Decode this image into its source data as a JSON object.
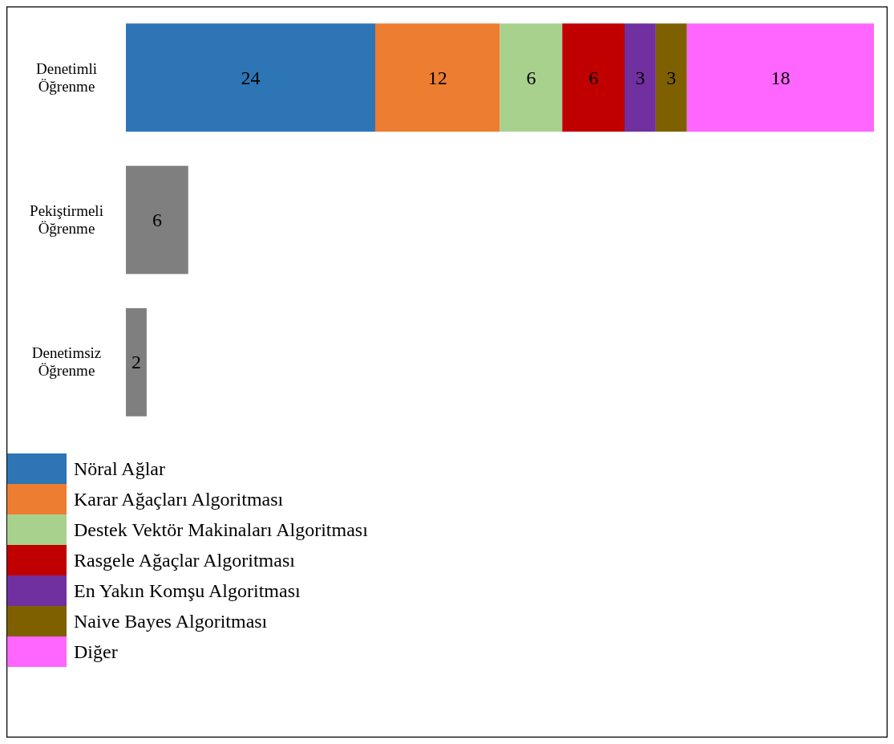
{
  "chart_data": {
    "type": "bar",
    "orientation": "horizontal",
    "stacked": true,
    "categories": [
      "Denetimli Öğrenme",
      "Pekiştirmeli Öğrenme",
      "Denetimsiz Öğrenme"
    ],
    "series": [
      {
        "name": "Nöral Ağlar",
        "color": "#2e75b6",
        "values": [
          24,
          null,
          null
        ]
      },
      {
        "name": "Karar Ağaçları Algoritması",
        "color": "#ed7d31",
        "values": [
          12,
          null,
          null
        ]
      },
      {
        "name": "Destek Vektör Makinaları Algoritması",
        "color": "#a9d18e",
        "values": [
          6,
          null,
          null
        ]
      },
      {
        "name": "Rasgele Ağaçlar Algoritması",
        "color": "#c00000",
        "values": [
          6,
          null,
          null
        ]
      },
      {
        "name": "En Yakın Komşu Algoritması",
        "color": "#7030a0",
        "values": [
          3,
          null,
          null
        ]
      },
      {
        "name": "Naive Bayes Algoritması",
        "color": "#7f6000",
        "values": [
          3,
          null,
          null
        ]
      },
      {
        "name": "Diğer",
        "color": "#ff66ff",
        "values": [
          18,
          null,
          null
        ]
      },
      {
        "color": "#7f7f7f",
        "values": [
          null,
          6,
          2
        ]
      }
    ],
    "data_labels": true,
    "legend": "bottom left",
    "tick_labels": "y"
  }
}
